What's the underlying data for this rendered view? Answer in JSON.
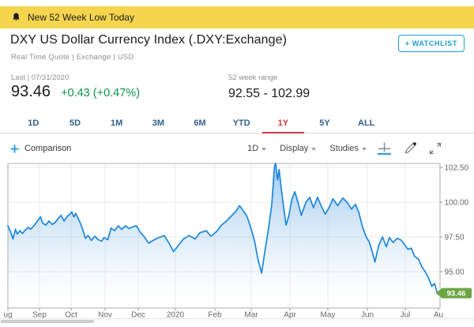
{
  "banner": {
    "text": "New 52 Week Low Today"
  },
  "header": {
    "title": "DXY US Dollar Currency Index (.DXY:Exchange)",
    "subtitle": "Real Time Quote | Exchange | USD",
    "watchlist_label": "+ WATCHLIST"
  },
  "quote": {
    "last_label": "Last | 07/31/2020",
    "price": "93.46",
    "change": "+0.43 (+0.47%)",
    "range_label": "52 week range",
    "range_value": "92.55 - 102.99"
  },
  "range_tabs": {
    "items": [
      "1D",
      "5D",
      "1M",
      "3M",
      "6M",
      "YTD",
      "1Y",
      "5Y",
      "ALL"
    ],
    "active": "1Y"
  },
  "toolbar": {
    "comparison_label": "Comparison",
    "dropdowns": [
      "1D",
      "Display",
      "Studies"
    ],
    "icons": [
      "crosshair-icon",
      "draw-icon",
      "expand-icon"
    ]
  },
  "colors": {
    "banner_bg": "#F5D54E",
    "accent_blue": "#1D9BD8",
    "positive_green": "#0B9446",
    "tab_blue": "#33618D",
    "active_red": "#CF3B40",
    "line_blue": "#1B86DC",
    "badge_green": "#6CA644"
  },
  "chart_data": {
    "type": "area",
    "title": "DXY 1Y price",
    "x_tick_labels": [
      "ug",
      "Sep",
      "Oct",
      "Nov",
      "Dec",
      "2020",
      "Feb",
      "Mar",
      "Apr",
      "May",
      "Jun",
      "Jul",
      "Au"
    ],
    "y_tick_labels": [
      "102.50",
      "100.00",
      "97.50",
      "95.00"
    ],
    "y_tick_values": [
      102.5,
      100.0,
      97.5,
      95.0
    ],
    "y_range": [
      92.4,
      102.9
    ],
    "last_price": 93.46,
    "last_price_label": "93.46",
    "points": [
      [
        0,
        98.3
      ],
      [
        0.08,
        97.9
      ],
      [
        0.16,
        97.35
      ],
      [
        0.24,
        98.05
      ],
      [
        0.3,
        97.7
      ],
      [
        0.38,
        97.95
      ],
      [
        0.46,
        97.75
      ],
      [
        0.55,
        98.0
      ],
      [
        0.65,
        98.2
      ],
      [
        0.72,
        98.05
      ],
      [
        0.82,
        98.3
      ],
      [
        0.92,
        98.6
      ],
      [
        1.03,
        98.95
      ],
      [
        1.1,
        98.5
      ],
      [
        1.2,
        98.35
      ],
      [
        1.3,
        98.65
      ],
      [
        1.4,
        98.4
      ],
      [
        1.5,
        98.55
      ],
      [
        1.58,
        98.8
      ],
      [
        1.68,
        99.05
      ],
      [
        1.78,
        98.65
      ],
      [
        1.88,
        99.0
      ],
      [
        1.95,
        99.1
      ],
      [
        2.02,
        99.3
      ],
      [
        2.08,
        98.95
      ],
      [
        2.14,
        99.2
      ],
      [
        2.25,
        98.6
      ],
      [
        2.32,
        98.2
      ],
      [
        2.42,
        97.4
      ],
      [
        2.5,
        97.6
      ],
      [
        2.6,
        97.25
      ],
      [
        2.7,
        97.55
      ],
      [
        2.8,
        97.3
      ],
      [
        2.9,
        97.2
      ],
      [
        2.97,
        97.45
      ],
      [
        3.08,
        97.3
      ],
      [
        3.18,
        98.15
      ],
      [
        3.28,
        97.95
      ],
      [
        3.4,
        98.3
      ],
      [
        3.5,
        98.05
      ],
      [
        3.62,
        98.3
      ],
      [
        3.72,
        98.1
      ],
      [
        3.85,
        98.25
      ],
      [
        3.95,
        98.3
      ],
      [
        4.05,
        97.85
      ],
      [
        4.15,
        97.55
      ],
      [
        4.28,
        97.05
      ],
      [
        4.4,
        97.25
      ],
      [
        4.55,
        97.45
      ],
      [
        4.7,
        97.6
      ],
      [
        4.82,
        97.1
      ],
      [
        4.95,
        96.45
      ],
      [
        5.08,
        96.9
      ],
      [
        5.2,
        97.35
      ],
      [
        5.35,
        97.6
      ],
      [
        5.5,
        97.35
      ],
      [
        5.62,
        97.8
      ],
      [
        5.78,
        97.95
      ],
      [
        5.9,
        97.55
      ],
      [
        6.05,
        97.9
      ],
      [
        6.18,
        98.35
      ],
      [
        6.3,
        98.6
      ],
      [
        6.45,
        99.0
      ],
      [
        6.58,
        99.35
      ],
      [
        6.68,
        99.75
      ],
      [
        6.78,
        99.4
      ],
      [
        6.88,
        99.0
      ],
      [
        6.96,
        98.4
      ],
      [
        7.08,
        97.3
      ],
      [
        7.18,
        95.8
      ],
      [
        7.27,
        94.9
      ],
      [
        7.35,
        96.4
      ],
      [
        7.44,
        98.0
      ],
      [
        7.53,
        99.8
      ],
      [
        7.6,
        102.55
      ],
      [
        7.63,
        102.8
      ],
      [
        7.68,
        101.6
      ],
      [
        7.72,
        102.35
      ],
      [
        7.78,
        100.9
      ],
      [
        7.85,
        99.4
      ],
      [
        7.9,
        98.35
      ],
      [
        7.97,
        99.0
      ],
      [
        8.05,
        100.2
      ],
      [
        8.13,
        100.75
      ],
      [
        8.22,
        99.9
      ],
      [
        8.3,
        99.05
      ],
      [
        8.42,
        100.0
      ],
      [
        8.52,
        100.35
      ],
      [
        8.62,
        99.6
      ],
      [
        8.73,
        100.35
      ],
      [
        8.83,
        99.7
      ],
      [
        8.93,
        99.15
      ],
      [
        9.03,
        99.6
      ],
      [
        9.13,
        100.25
      ],
      [
        9.25,
        99.75
      ],
      [
        9.38,
        100.3
      ],
      [
        9.5,
        99.95
      ],
      [
        9.6,
        99.5
      ],
      [
        9.7,
        99.85
      ],
      [
        9.78,
        99.3
      ],
      [
        9.88,
        98.2
      ],
      [
        9.97,
        97.5
      ],
      [
        10.05,
        97.15
      ],
      [
        10.12,
        96.5
      ],
      [
        10.2,
        95.7
      ],
      [
        10.3,
        96.9
      ],
      [
        10.4,
        97.5
      ],
      [
        10.5,
        96.8
      ],
      [
        10.58,
        97.45
      ],
      [
        10.68,
        97.1
      ],
      [
        10.78,
        97.4
      ],
      [
        10.88,
        97.3
      ],
      [
        10.97,
        97.0
      ],
      [
        11.08,
        96.6
      ],
      [
        11.18,
        96.7
      ],
      [
        11.28,
        96.1
      ],
      [
        11.4,
        95.9
      ],
      [
        11.5,
        95.35
      ],
      [
        11.6,
        95.0
      ],
      [
        11.7,
        94.55
      ],
      [
        11.8,
        93.95
      ],
      [
        11.88,
        94.15
      ],
      [
        11.97,
        93.46
      ]
    ]
  }
}
